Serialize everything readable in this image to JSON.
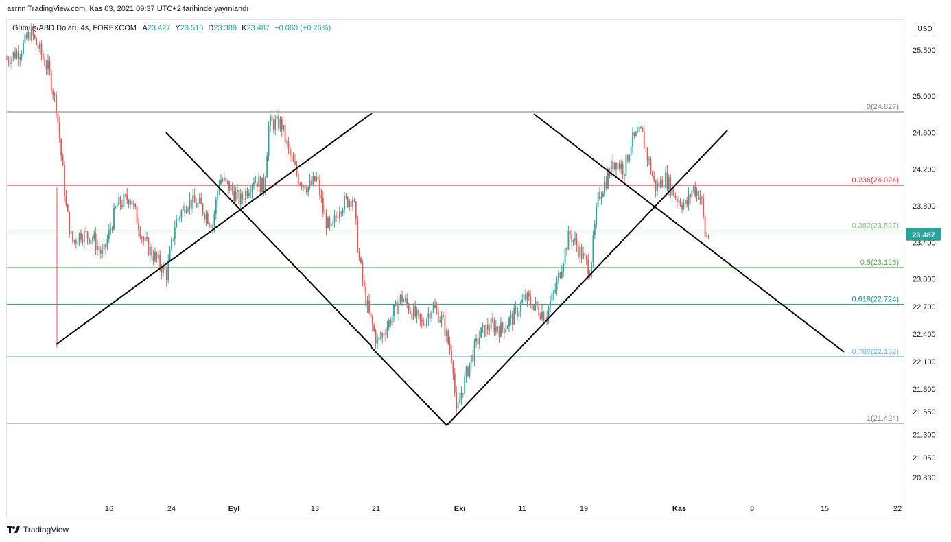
{
  "header": {
    "published": "asrnn TradingView.com, Kas 03, 2021 09:37 UTC+2 tarihinde yayınlandı"
  },
  "symbol": {
    "name": "Gümüş/ABD Doları, 4s, FOREXCOM",
    "open_label": "A",
    "open": "23.427",
    "high_label": "Y",
    "high": "23.515",
    "low_label": "D",
    "low": "23.389",
    "close_label": "K",
    "close": "23.487",
    "change": "+0.060 (+0.26%)"
  },
  "currency_button": "USD",
  "footer": {
    "brand": "TradingView",
    "logo_icon": "tradingview-logo-icon"
  },
  "colors": {
    "up": "#26a69a",
    "down": "#ef5350",
    "price_tag": "#26a69a",
    "trendline": "#000000"
  },
  "chart_data": {
    "type": "candlestick",
    "ylim": [
      20.7,
      25.9
    ],
    "y_ticks": [
      "25.500",
      "25.000",
      "24.600",
      "24.200",
      "23.800",
      "23.400",
      "23.000",
      "22.700",
      "22.400",
      "22.100",
      "21.800",
      "21.550",
      "21.300",
      "21.050",
      "20.830"
    ],
    "x_ticks": [
      "16",
      "24",
      "Eyl",
      "13",
      "21",
      "Eki",
      "11",
      "19",
      "Kas",
      "8",
      "15",
      "22"
    ],
    "last_price": "23.487",
    "fibonacci": [
      {
        "label": "0(24.827)",
        "value": 24.827,
        "color": "#787b86"
      },
      {
        "label": "0.236(24.024)",
        "value": 24.024,
        "color": "#f23645"
      },
      {
        "label": "0.382(23.527)",
        "value": 23.527,
        "color": "#81c784"
      },
      {
        "label": "0.5(23.126)",
        "value": 23.126,
        "color": "#4caf50"
      },
      {
        "label": "0.618(22.724)",
        "value": 22.724,
        "color": "#089981"
      },
      {
        "label": "0.786(22.152)",
        "value": 22.152,
        "color": "#64b5f6"
      },
      {
        "label": "1(21.424)",
        "value": 21.424,
        "color": "#787b86"
      }
    ],
    "price_path": [
      [
        0,
        25.4
      ],
      [
        20,
        25.5
      ],
      [
        35,
        25.7
      ],
      [
        60,
        25.3
      ],
      [
        72,
        24.9
      ],
      [
        80,
        24.3
      ],
      [
        86,
        23.8
      ],
      [
        95,
        23.4
      ],
      [
        108,
        23.5
      ],
      [
        125,
        23.45
      ],
      [
        140,
        23.25
      ],
      [
        160,
        23.8
      ],
      [
        180,
        23.9
      ],
      [
        200,
        23.4
      ],
      [
        215,
        23.25
      ],
      [
        233,
        23.05
      ],
      [
        245,
        23.6
      ],
      [
        262,
        23.85
      ],
      [
        282,
        23.8
      ],
      [
        300,
        23.6
      ],
      [
        310,
        24.1
      ],
      [
        325,
        24.0
      ],
      [
        340,
        23.85
      ],
      [
        360,
        24.1
      ],
      [
        375,
        24.0
      ],
      [
        382,
        24.7
      ],
      [
        400,
        24.7
      ],
      [
        410,
        24.4
      ],
      [
        425,
        24.1
      ],
      [
        440,
        24.0
      ],
      [
        452,
        24.1
      ],
      [
        462,
        23.7
      ],
      [
        472,
        23.5
      ],
      [
        485,
        23.8
      ],
      [
        505,
        23.9
      ],
      [
        512,
        23.3
      ],
      [
        520,
        22.9
      ],
      [
        528,
        22.6
      ],
      [
        540,
        22.3
      ],
      [
        555,
        22.5
      ],
      [
        575,
        22.8
      ],
      [
        590,
        22.65
      ],
      [
        605,
        22.5
      ],
      [
        620,
        22.7
      ],
      [
        635,
        22.55
      ],
      [
        650,
        22.1
      ],
      [
        655,
        21.5
      ],
      [
        662,
        21.75
      ],
      [
        675,
        22.1
      ],
      [
        690,
        22.4
      ],
      [
        705,
        22.5
      ],
      [
        720,
        22.45
      ],
      [
        740,
        22.6
      ],
      [
        755,
        22.8
      ],
      [
        770,
        22.7
      ],
      [
        785,
        22.6
      ],
      [
        800,
        22.9
      ],
      [
        810,
        23.2
      ],
      [
        820,
        23.5
      ],
      [
        835,
        23.3
      ],
      [
        850,
        23.1
      ],
      [
        862,
        23.9
      ],
      [
        875,
        24.1
      ],
      [
        885,
        24.3
      ],
      [
        900,
        24.2
      ],
      [
        910,
        24.5
      ],
      [
        925,
        24.6
      ],
      [
        935,
        24.3
      ],
      [
        945,
        24.0
      ],
      [
        960,
        24.1
      ],
      [
        975,
        23.9
      ],
      [
        990,
        23.8
      ],
      [
        1000,
        24.0
      ],
      [
        1012,
        23.9
      ],
      [
        1018,
        23.45
      ],
      [
        1023,
        23.487
      ]
    ]
  }
}
